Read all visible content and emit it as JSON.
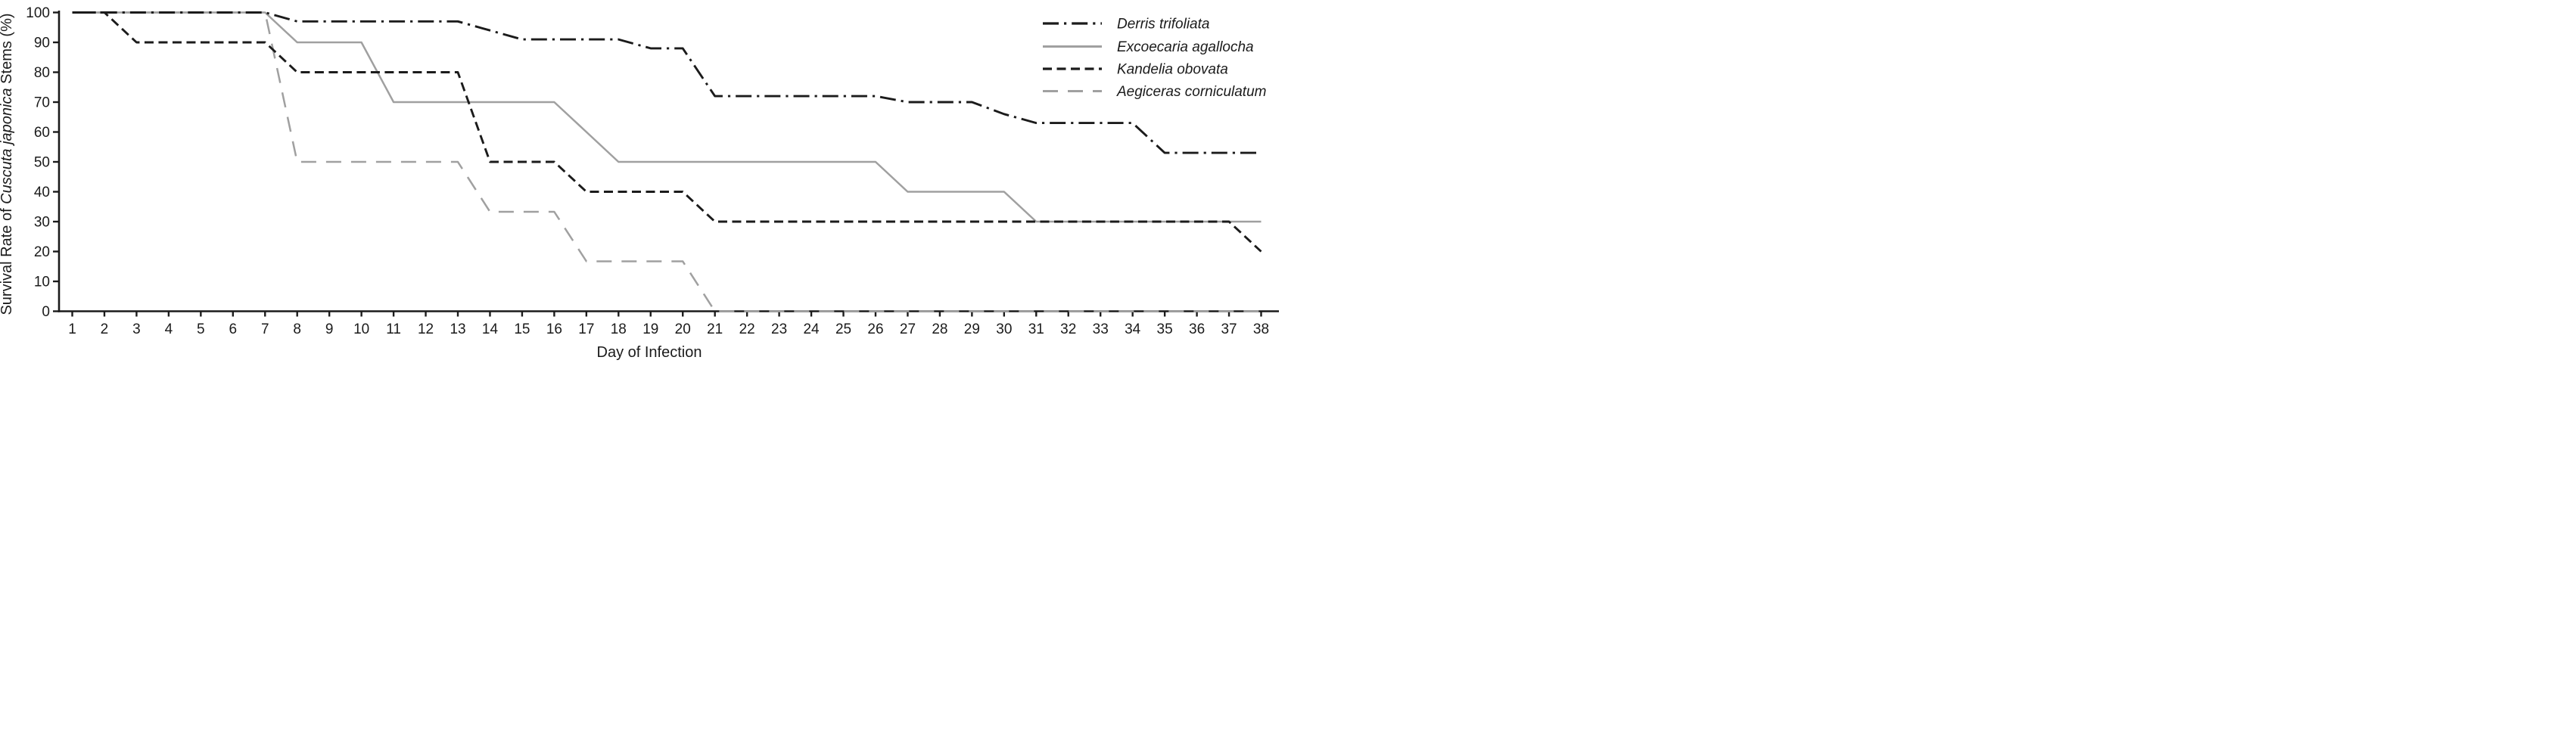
{
  "figure": {
    "xlabel": "Day of Infection",
    "ylabel_parts": {
      "prefix": "Survival Rate of ",
      "italic": "Cuscuta japonica",
      "suffix": " Stems (%)"
    }
  },
  "colors": {
    "black": "#1b1b1b",
    "gray": "#a0a0a0",
    "background": "#ffffff"
  },
  "chart_data": {
    "type": "line",
    "title": "",
    "xlabel": "Day of Infection",
    "ylabel": "Survival Rate of Cuscuta japonica Stems (%)",
    "xlim": [
      1,
      38
    ],
    "ylim": [
      0,
      100
    ],
    "grid": false,
    "legend_position": "top-right",
    "x": [
      1,
      2,
      3,
      4,
      5,
      6,
      7,
      8,
      9,
      10,
      11,
      12,
      13,
      14,
      15,
      16,
      17,
      18,
      19,
      20,
      21,
      22,
      23,
      24,
      25,
      26,
      27,
      28,
      29,
      30,
      31,
      32,
      33,
      34,
      35,
      36,
      37,
      38
    ],
    "yticks": [
      0,
      10,
      20,
      30,
      40,
      50,
      60,
      70,
      80,
      90,
      100
    ],
    "series": [
      {
        "name": "Derris trifoliata",
        "color": "#1b1b1b",
        "style": "dash-dot",
        "values": [
          100,
          100,
          100,
          100,
          100,
          100,
          100,
          97,
          97,
          97,
          97,
          97,
          97,
          94,
          91,
          91,
          91,
          91,
          88,
          88,
          72,
          72,
          72,
          72,
          72,
          72,
          70,
          70,
          70,
          66,
          63,
          63,
          63,
          63,
          53,
          53,
          53,
          53
        ]
      },
      {
        "name": "Excoecaria agallocha",
        "color": "#a0a0a0",
        "style": "solid",
        "values": [
          100,
          100,
          100,
          100,
          100,
          100,
          100,
          90,
          90,
          90,
          70,
          70,
          70,
          70,
          70,
          70,
          60,
          50,
          50,
          50,
          50,
          50,
          50,
          50,
          50,
          50,
          40,
          40,
          40,
          40,
          30,
          30,
          30,
          30,
          30,
          30,
          30,
          30
        ]
      },
      {
        "name": "Kandelia obovata",
        "color": "#1b1b1b",
        "style": "dashed",
        "values": [
          100,
          100,
          90,
          90,
          90,
          90,
          90,
          80,
          80,
          80,
          80,
          80,
          80,
          50,
          50,
          50,
          40,
          40,
          40,
          40,
          30,
          30,
          30,
          30,
          30,
          30,
          30,
          30,
          30,
          30,
          30,
          30,
          30,
          30,
          30,
          30,
          30,
          20
        ]
      },
      {
        "name": "Aegiceras corniculatum",
        "color": "#a0a0a0",
        "style": "long-dash",
        "values": [
          100,
          100,
          100,
          100,
          100,
          100,
          100,
          50,
          50,
          50,
          50,
          50,
          50,
          33.3,
          33.3,
          33.3,
          16.7,
          16.7,
          16.7,
          16.7,
          0,
          0,
          0,
          0,
          0,
          0,
          0,
          0,
          0,
          0,
          0,
          0,
          0,
          0,
          0,
          0,
          0,
          0
        ]
      }
    ]
  }
}
